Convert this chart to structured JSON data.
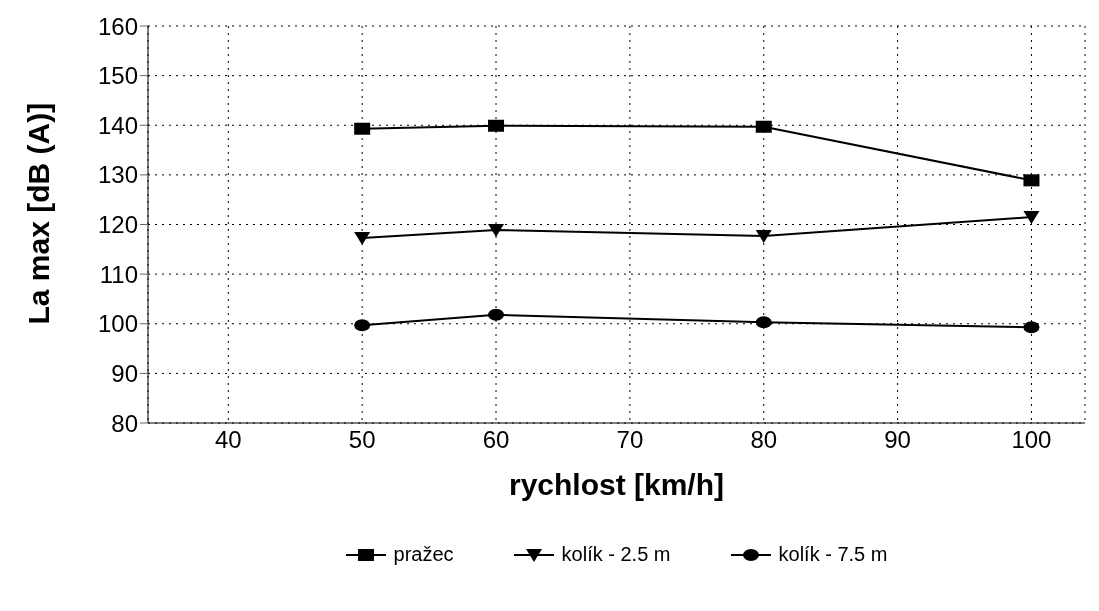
{
  "chart_data": {
    "type": "line",
    "xlabel": "rychlost  [km/h]",
    "ylabel": "La max [dB (A)]",
    "x": [
      50,
      60,
      80,
      100
    ],
    "series": [
      {
        "name": "pražec",
        "color": "#000000",
        "marker": "square",
        "values": [
          139.3,
          139.9,
          139.7,
          128.9
        ]
      },
      {
        "name": "kolík - 2.5 m",
        "color": "#000000",
        "marker": "triangle",
        "values": [
          117.3,
          118.9,
          117.7,
          121.5
        ]
      },
      {
        "name": "kolík - 7.5 m",
        "color": "#000000",
        "marker": "circle",
        "values": [
          99.7,
          101.8,
          100.3,
          99.3
        ]
      }
    ],
    "xlim": [
      34,
      104
    ],
    "xticks": [
      40,
      50,
      60,
      70,
      80,
      90,
      100
    ],
    "ylim": [
      80,
      160
    ],
    "yticks": [
      80,
      90,
      100,
      110,
      120,
      130,
      140,
      150,
      160
    ],
    "grid": true,
    "legend": "bottom",
    "line_style": "solid"
  }
}
